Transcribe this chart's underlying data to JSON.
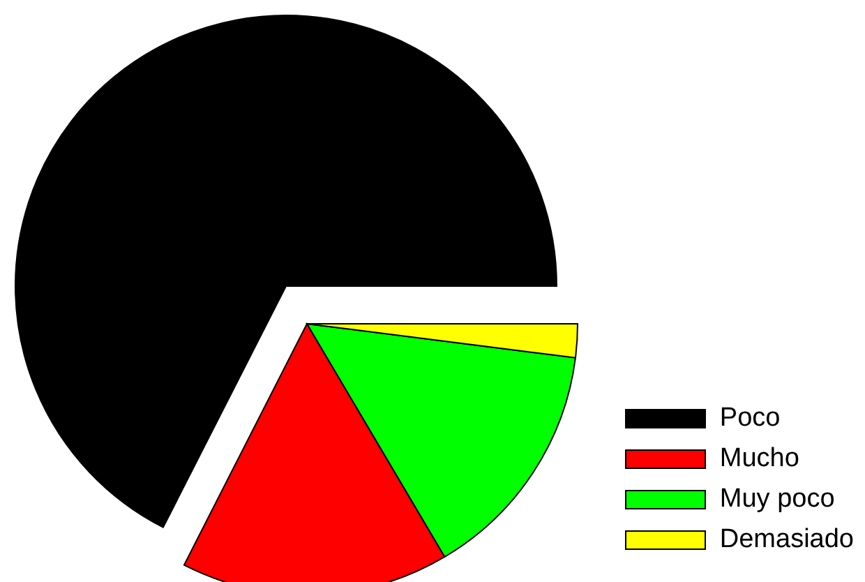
{
  "chart_data": {
    "type": "pie",
    "categories": [
      "Poco",
      "Mucho",
      "Muy poco",
      "Demasiado"
    ],
    "values": [
      67.5,
      16,
      14.5,
      2
    ],
    "colors": [
      "#000000",
      "#ff0000",
      "#00ff00",
      "#ffff00"
    ],
    "legend": "bottom right"
  }
}
